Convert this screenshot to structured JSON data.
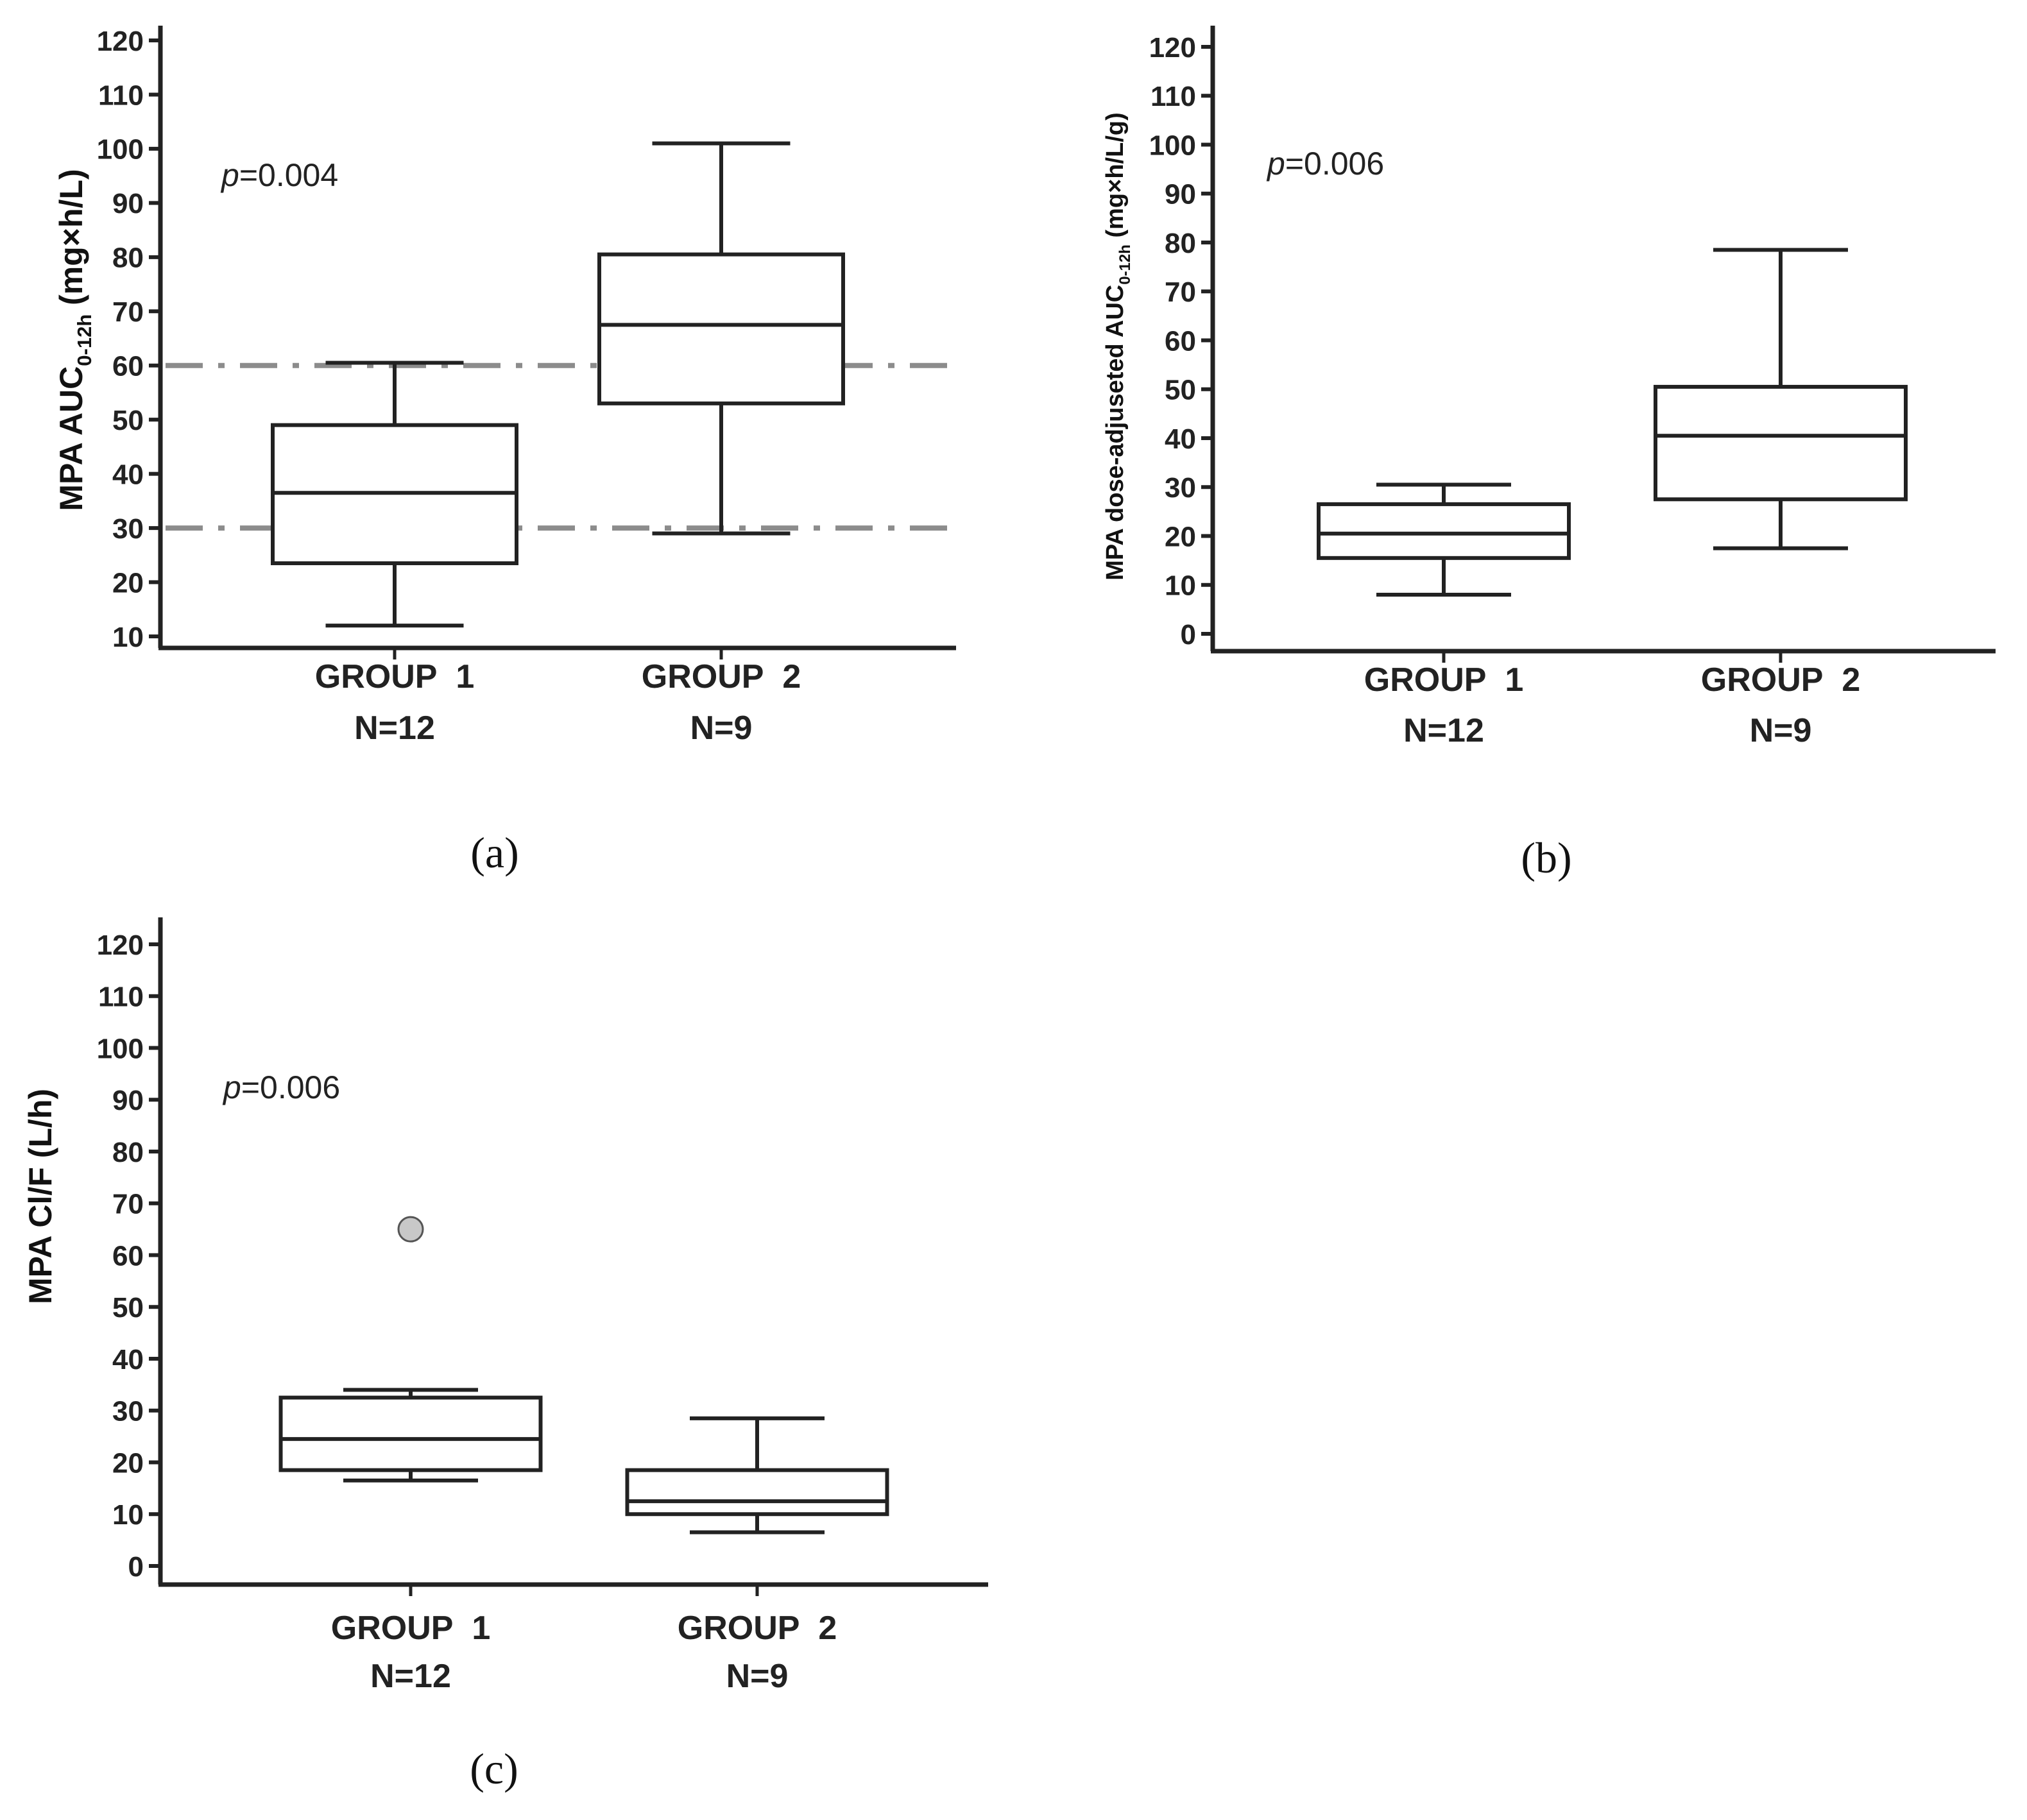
{
  "chart_data": [
    {
      "id": "a",
      "type": "box",
      "panel_label": "(a)",
      "ylabel": {
        "main": "MPA AUC",
        "sub": "0-12h",
        "unit": "(mg×h/L)"
      },
      "ylim": [
        10,
        120
      ],
      "yticks": [
        10,
        20,
        30,
        40,
        50,
        60,
        70,
        80,
        90,
        100,
        110,
        120
      ],
      "pvalue": {
        "prefix": "p",
        "value": "=0.004"
      },
      "reference_lines": [
        60,
        30
      ],
      "categories": [
        {
          "name": "GROUP 1",
          "n": "N=12"
        },
        {
          "name": "GROUP 2",
          "n": "N=9"
        }
      ],
      "boxes": [
        {
          "whisker_low": 12,
          "q1": 23.5,
          "median": 36.5,
          "q3": 49,
          "whisker_high": 60.5,
          "outliers": []
        },
        {
          "whisker_low": 29,
          "q1": 53,
          "median": 67.5,
          "q3": 80.5,
          "whisker_high": 101,
          "outliers": []
        }
      ]
    },
    {
      "id": "b",
      "type": "box",
      "panel_label": "(b)",
      "ylabel": {
        "main": "MPA dose-adjuseted AUC",
        "sub": "0-12h",
        "unit": "(mg×h/L/g)"
      },
      "ylim": [
        0,
        120
      ],
      "yticks": [
        0,
        10,
        20,
        30,
        40,
        50,
        60,
        70,
        80,
        90,
        100,
        110,
        120
      ],
      "pvalue": {
        "prefix": "p",
        "value": "=0.006"
      },
      "reference_lines": [],
      "categories": [
        {
          "name": "GROUP 1",
          "n": "N=12"
        },
        {
          "name": "GROUP 2",
          "n": "N=9"
        }
      ],
      "boxes": [
        {
          "whisker_low": 8,
          "q1": 15.5,
          "median": 20.5,
          "q3": 26.5,
          "whisker_high": 30.5,
          "outliers": []
        },
        {
          "whisker_low": 17.5,
          "q1": 27.5,
          "median": 40.5,
          "q3": 50.5,
          "whisker_high": 78.5,
          "outliers": []
        }
      ]
    },
    {
      "id": "c",
      "type": "box",
      "panel_label": "(c)",
      "ylabel": {
        "main": "MPA Cl/F (L/h)",
        "sub": "",
        "unit": ""
      },
      "ylim": [
        0,
        120
      ],
      "yticks": [
        0,
        10,
        20,
        30,
        40,
        50,
        60,
        70,
        80,
        90,
        100,
        110,
        120
      ],
      "pvalue": {
        "prefix": "p",
        "value": "=0.006"
      },
      "reference_lines": [],
      "categories": [
        {
          "name": "GROUP 1",
          "n": "N=12"
        },
        {
          "name": "GROUP 2",
          "n": "N=9"
        }
      ],
      "boxes": [
        {
          "whisker_low": 16.5,
          "q1": 18.5,
          "median": 24.5,
          "q3": 32.5,
          "whisker_high": 34,
          "outliers": [
            65
          ]
        },
        {
          "whisker_low": 6.5,
          "q1": 10,
          "median": 12.5,
          "q3": 18.5,
          "whisker_high": 28.5,
          "outliers": []
        }
      ]
    }
  ],
  "colors": {
    "axis": "#222222",
    "box": "#222222",
    "reference_line": "#8c8c8c",
    "outlier_fill": "#c8c8c8",
    "outlier_stroke": "#555555"
  }
}
